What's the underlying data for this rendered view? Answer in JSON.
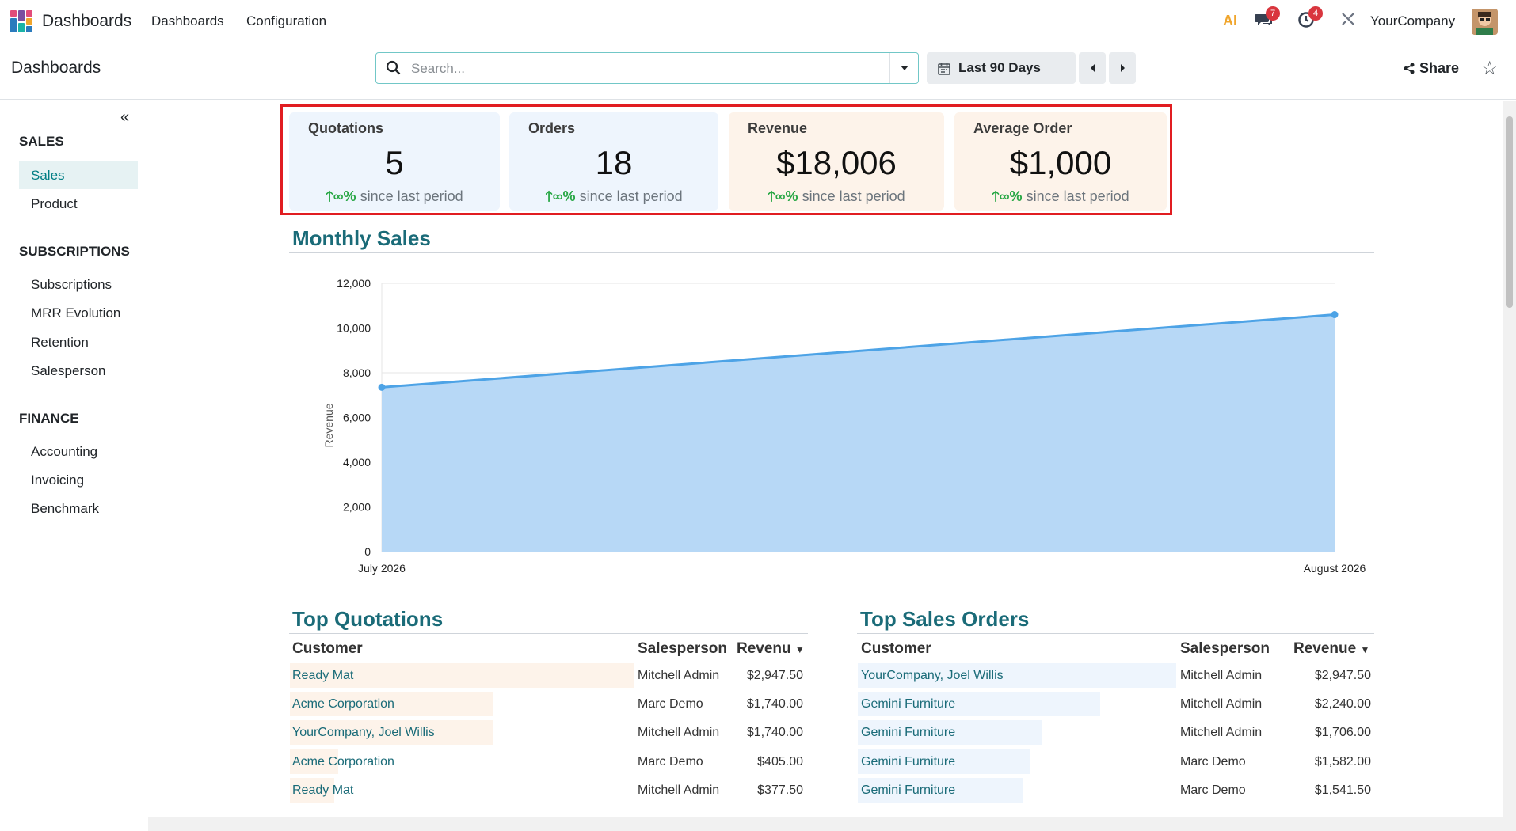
{
  "topbar": {
    "app_name": "Dashboards",
    "menu": [
      "Dashboards",
      "Configuration"
    ],
    "ai_label": "AI",
    "messages_count": "7",
    "activities_count": "4",
    "company": "YourCompany"
  },
  "control": {
    "breadcrumb": "Dashboards",
    "search_placeholder": "Search...",
    "date_filter": "Last 90 Days",
    "share_label": "Share"
  },
  "sidebar": {
    "sections": [
      {
        "title": "SALES",
        "items": [
          "Sales",
          "Product"
        ]
      },
      {
        "title": "SUBSCRIPTIONS",
        "items": [
          "Subscriptions",
          "MRR Evolution",
          "Retention",
          "Salesperson"
        ]
      },
      {
        "title": "FINANCE",
        "items": [
          "Accounting",
          "Invoicing",
          "Benchmark"
        ]
      }
    ],
    "active": "Sales"
  },
  "kpis": [
    {
      "title": "Quotations",
      "value": "5",
      "trend": "∞%",
      "trend_text": "since last period",
      "color": "#eef5fd"
    },
    {
      "title": "Orders",
      "value": "18",
      "trend": "∞%",
      "trend_text": "since last period",
      "color": "#eef5fd"
    },
    {
      "title": "Revenue",
      "value": "$18,006",
      "trend": "∞%",
      "trend_text": "since last period",
      "color": "#fdf3ea"
    },
    {
      "title": "Average Order",
      "value": "$1,000",
      "trend": "∞%",
      "trend_text": "since last period",
      "color": "#fdf3ea"
    }
  ],
  "monthly_sales": {
    "title": "Monthly Sales"
  },
  "chart_data": {
    "type": "area",
    "x": [
      "July 2026",
      "August 2026"
    ],
    "series": [
      {
        "values": [
          7350,
          10600
        ]
      }
    ],
    "ylabel": "Revenue",
    "ylim": [
      0,
      12000
    ],
    "yticks": [
      "0",
      "2,000",
      "4,000",
      "6,000",
      "8,000",
      "10,000",
      "12,000"
    ],
    "fill_color": "#b7d8f6",
    "line_color": "#4da3e6",
    "grid": true
  },
  "top_quotations": {
    "title": "Top Quotations",
    "headers": [
      "Customer",
      "Salesperson",
      "Revenu"
    ],
    "rows": [
      {
        "customer": "Ready Mat",
        "salesperson": "Mitchell Admin",
        "revenue": "$2,947.50",
        "share": 1.0
      },
      {
        "customer": "Acme Corporation",
        "salesperson": "Marc Demo",
        "revenue": "$1,740.00",
        "share": 0.59
      },
      {
        "customer": "YourCompany, Joel Willis",
        "salesperson": "Mitchell Admin",
        "revenue": "$1,740.00",
        "share": 0.59
      },
      {
        "customer": "Acme Corporation",
        "salesperson": "Marc Demo",
        "revenue": "$405.00",
        "share": 0.14
      },
      {
        "customer": "Ready Mat",
        "salesperson": "Mitchell Admin",
        "revenue": "$377.50",
        "share": 0.13
      }
    ]
  },
  "top_sales_orders": {
    "title": "Top Sales Orders",
    "headers": [
      "Customer",
      "Salesperson",
      "Revenue"
    ],
    "rows": [
      {
        "customer": "YourCompany, Joel Willis",
        "salesperson": "Mitchell Admin",
        "revenue": "$2,947.50",
        "share": 1.0
      },
      {
        "customer": "Gemini Furniture",
        "salesperson": "Mitchell Admin",
        "revenue": "$2,240.00",
        "share": 0.76
      },
      {
        "customer": "Gemini Furniture",
        "salesperson": "Mitchell Admin",
        "revenue": "$1,706.00",
        "share": 0.58
      },
      {
        "customer": "Gemini Furniture",
        "salesperson": "Marc Demo",
        "revenue": "$1,582.00",
        "share": 0.54
      },
      {
        "customer": "Gemini Furniture",
        "salesperson": "Marc Demo",
        "revenue": "$1,541.50",
        "share": 0.52
      }
    ]
  }
}
